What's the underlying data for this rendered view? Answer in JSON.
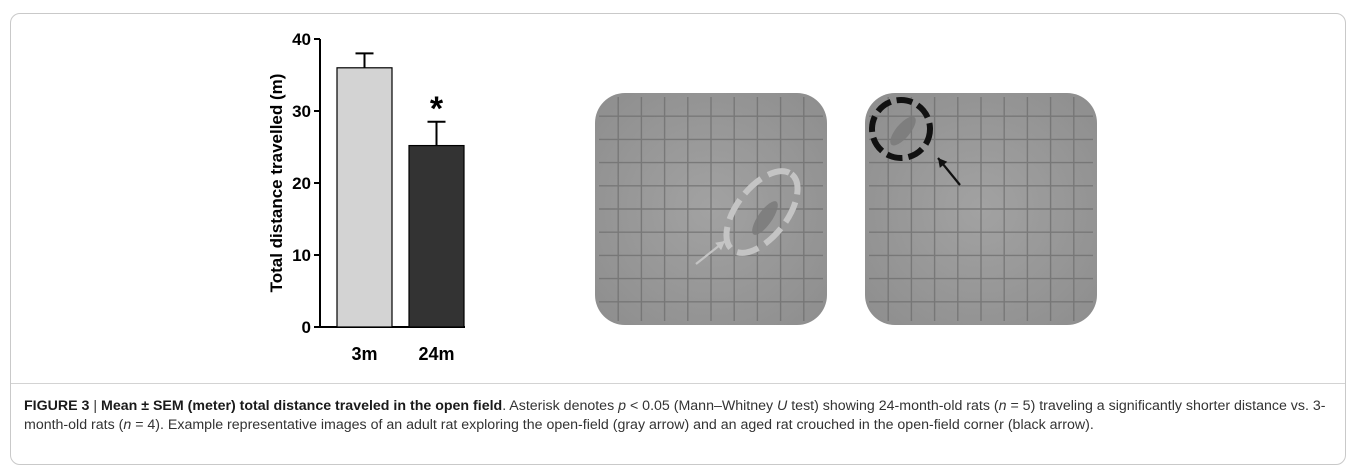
{
  "chart_data": {
    "type": "bar",
    "categories": [
      "3m",
      "24m"
    ],
    "values": [
      36,
      25.2
    ],
    "errors": [
      2.0,
      3.3
    ],
    "ylabel": "Total distance travelled  (m)",
    "ylim": [
      0,
      40
    ],
    "yticks": [
      0,
      10,
      20,
      30,
      40
    ],
    "bar_colors": [
      "#d3d3d3",
      "#333333"
    ],
    "annotations": [
      {
        "category": "24m",
        "text": "*"
      }
    ],
    "grid": false,
    "legend": "none"
  },
  "photos": [
    {
      "name": "adult-rat-open-field",
      "circle_color": "#c4c4c4",
      "arrow_color": "#c4c4c4"
    },
    {
      "name": "aged-rat-open-field",
      "circle_color": "#111111",
      "arrow_color": "#111111"
    }
  ],
  "caption": {
    "label": "FIGURE 3",
    "separator": " | ",
    "title": "Mean ± SEM (meter) total distance traveled in the open field",
    "t1": ". Asterisk denotes ",
    "p": "p",
    "t2": " < 0.05 (Mann–Whitney ",
    "u": "U",
    "t3": " test) showing 24-month-old rats (",
    "n1": "n",
    "t4": " = 5) traveling a significantly shorter distance vs. 3-month-old rats (",
    "n2": "n",
    "t5": " = 4). Example representative images of an adult rat exploring the open-field (gray arrow) and an aged rat crouched in the open-field corner (black arrow)."
  }
}
